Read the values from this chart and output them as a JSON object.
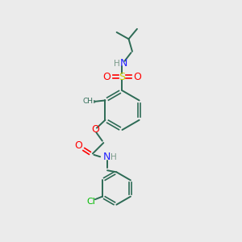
{
  "bg_color": "#ebebeb",
  "bond_color": "#2d6b55",
  "N_color": "#2020ff",
  "O_color": "#ff0000",
  "S_color": "#cccc00",
  "Cl_color": "#00bb00",
  "H_color": "#7a9a8a",
  "figsize": [
    3.0,
    3.0
  ],
  "dpi": 100,
  "xlim": [
    0,
    10
  ],
  "ylim": [
    0,
    10
  ]
}
